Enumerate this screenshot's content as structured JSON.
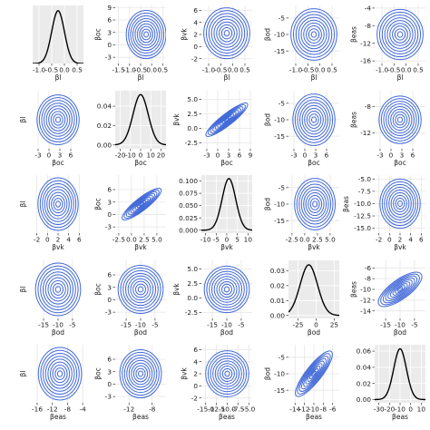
{
  "figure": {
    "type": "pairs-plot",
    "density_line_color": "#000000",
    "contour_color": "#4169d8",
    "panel_background_diagonal": "#ebebeb",
    "gridline_color": "#e6e6e6"
  },
  "chart_data": [
    {
      "type": "line",
      "row": 0,
      "col": 0,
      "xlabel": "βl",
      "ylabel": "",
      "xticks": [
        "-1.0",
        "-0.5",
        "0.0",
        "0.5"
      ],
      "xlim": [
        -1.25,
        0.75
      ],
      "yticks": [],
      "ylim": [
        0,
        1.1
      ],
      "density": {
        "mean": -0.25,
        "sd": 0.25,
        "peak": 1.0
      },
      "grid": true
    },
    {
      "type": "contour",
      "row": 0,
      "col": 1,
      "xlabel": "βl",
      "ylabel": "βoc",
      "xticks": [
        "-1.5",
        "-1.0",
        "-0.5",
        "0.0",
        "0.5"
      ],
      "xlim": [
        -1.65,
        0.65
      ],
      "yticks": [
        "-3",
        "0",
        "3",
        "6",
        "9"
      ],
      "ylim": [
        -4.5,
        9.5
      ],
      "center": [
        -0.25,
        2.5
      ],
      "rx": 0.9,
      "ry": 5.8,
      "rings": 9
    },
    {
      "type": "contour",
      "row": 0,
      "col": 2,
      "xlabel": "βl",
      "ylabel": "βvk",
      "xticks": [
        "-1.0",
        "-0.5",
        "0.0",
        "0.5"
      ],
      "xlim": [
        -1.3,
        0.8
      ],
      "yticks": [
        "-2",
        "0",
        "2",
        "4",
        "6"
      ],
      "ylim": [
        -2.8,
        6.8
      ],
      "center": [
        -0.25,
        2.2
      ],
      "rx": 0.95,
      "ry": 4.2,
      "rings": 9
    },
    {
      "type": "contour",
      "row": 0,
      "col": 3,
      "xlabel": "βl",
      "ylabel": "βod",
      "xticks": [
        "-1.0",
        "-0.5",
        "0.0",
        "0.5"
      ],
      "xlim": [
        -1.3,
        0.8
      ],
      "yticks": [
        "-15",
        "-10",
        "-5"
      ],
      "ylim": [
        -18.8,
        -1.2
      ],
      "center": [
        -0.25,
        -10
      ],
      "rx": 0.95,
      "ry": 7.8,
      "rings": 9
    },
    {
      "type": "contour",
      "row": 0,
      "col": 4,
      "xlabel": "βl",
      "ylabel": "βeas",
      "xticks": [
        "-1.0",
        "-0.5",
        "0.0",
        "0.5"
      ],
      "xlim": [
        -1.3,
        0.8
      ],
      "yticks": [
        "-16",
        "-12",
        "-8",
        "-4"
      ],
      "ylim": [
        -16.6,
        -3.4
      ],
      "center": [
        -0.25,
        -10
      ],
      "rx": 0.95,
      "ry": 5.7,
      "rings": 9
    },
    {
      "type": "contour",
      "row": 1,
      "col": 0,
      "xlabel": "βoc",
      "ylabel": "βl",
      "xticks": [
        "-3",
        "0",
        "3",
        "6"
      ],
      "xlim": [
        -4.5,
        9.5
      ],
      "yticks": [],
      "ylim": [
        -1.3,
        0.8
      ],
      "center": [
        2.5,
        -0.25
      ],
      "rx": 5.8,
      "ry": 0.9,
      "rings": 9
    },
    {
      "type": "line",
      "row": 1,
      "col": 1,
      "xlabel": "βoc",
      "ylabel": "",
      "xticks": [
        "-20",
        "-10",
        "0",
        "10",
        "20"
      ],
      "xlim": [
        -25,
        25
      ],
      "yticks": [
        "0.00",
        "0.02",
        "0.04"
      ],
      "ylim": [
        -0.004,
        0.056
      ],
      "density": {
        "mean": 0,
        "sd": 7.5,
        "peak": 0.052
      },
      "grid": true
    },
    {
      "type": "contour",
      "row": 1,
      "col": 2,
      "xlabel": "βoc",
      "ylabel": "βvk",
      "xticks": [
        "-3",
        "0",
        "3",
        "6",
        "9"
      ],
      "xlim": [
        -4.5,
        9.5
      ],
      "yticks": [
        "-2.5",
        "0.0",
        "2.5",
        "5.0"
      ],
      "ylim": [
        -3.5,
        6.5
      ],
      "center": [
        2.5,
        1.5
      ],
      "rx": 7.2,
      "ry": 1.0,
      "angle": -38,
      "rings": 9
    },
    {
      "type": "contour",
      "row": 1,
      "col": 3,
      "xlabel": "βoc",
      "ylabel": "βod",
      "xticks": [
        "-3",
        "0",
        "3",
        "6"
      ],
      "xlim": [
        -4.5,
        9.5
      ],
      "yticks": [
        "-15",
        "-10",
        "-5"
      ],
      "ylim": [
        -18.8,
        -1.2
      ],
      "center": [
        2.5,
        -10
      ],
      "rx": 5.8,
      "ry": 7.8,
      "rings": 9
    },
    {
      "type": "contour",
      "row": 1,
      "col": 4,
      "xlabel": "βoc",
      "ylabel": "βeas",
      "xticks": [
        "-3",
        "0",
        "3",
        "6"
      ],
      "xlim": [
        -4.5,
        9.5
      ],
      "yticks": [
        "-12",
        "-8"
      ],
      "ylim": [
        -14.4,
        -5.6
      ],
      "center": [
        2.5,
        -10
      ],
      "rx": 5.8,
      "ry": 3.6,
      "rings": 9
    },
    {
      "type": "contour",
      "row": 2,
      "col": 0,
      "xlabel": "βvk",
      "ylabel": "βl",
      "xticks": [
        "-2",
        "0",
        "2",
        "4",
        "6"
      ],
      "xlim": [
        -2.8,
        6.8
      ],
      "yticks": [],
      "ylim": [
        -1.3,
        0.8
      ],
      "center": [
        2.0,
        -0.25
      ],
      "rx": 3.8,
      "ry": 0.95,
      "rings": 9
    },
    {
      "type": "contour",
      "row": 2,
      "col": 1,
      "xlabel": "βvk",
      "ylabel": "βoc",
      "xticks": [
        "-2.5",
        "0.0",
        "2.5",
        "5.0"
      ],
      "xlim": [
        -3.2,
        6.8
      ],
      "yticks": [
        "-3",
        "0",
        "3",
        "6"
      ],
      "ylim": [
        -4.5,
        9.5
      ],
      "center": [
        2.0,
        2.5
      ],
      "rx": 4.8,
      "ry": 1.5,
      "angle": -38,
      "rings": 9
    },
    {
      "type": "line",
      "row": 2,
      "col": 2,
      "xlabel": "βvk",
      "ylabel": "",
      "xticks": [
        "-10",
        "-5",
        "0",
        "5",
        "10"
      ],
      "xlim": [
        -12,
        12
      ],
      "yticks": [
        "0.000",
        "0.025",
        "0.050",
        "0.075",
        "0.100"
      ],
      "ylim": [
        -0.006,
        0.112
      ],
      "density": {
        "mean": 1.0,
        "sd": 3.2,
        "peak": 0.105
      },
      "grid": true
    },
    {
      "type": "contour",
      "row": 2,
      "col": 3,
      "xlabel": "βvk",
      "ylabel": "βod",
      "xticks": [
        "-2.5",
        "0.0",
        "2.5",
        "5.0"
      ],
      "xlim": [
        -3.2,
        6.8
      ],
      "yticks": [
        "-15",
        "-10",
        "-5"
      ],
      "ylim": [
        -18.8,
        -1.2
      ],
      "center": [
        2.0,
        -10
      ],
      "rx": 4.0,
      "ry": 7.8,
      "rings": 9
    },
    {
      "type": "contour",
      "row": 2,
      "col": 4,
      "xlabel": "βvk",
      "ylabel": "βeas",
      "xticks": [
        "-2",
        "0",
        "2",
        "4",
        "6"
      ],
      "xlim": [
        -2.8,
        6.8
      ],
      "yticks": [
        "-15.0",
        "-12.5",
        "-10.0",
        "-7.5",
        "-5.0"
      ],
      "ylim": [
        -16.0,
        -4.2
      ],
      "center": [
        2.0,
        -10
      ],
      "rx": 3.8,
      "ry": 5.0,
      "rings": 9
    },
    {
      "type": "contour",
      "row": 3,
      "col": 0,
      "xlabel": "βod",
      "ylabel": "βl",
      "xticks": [
        "-15",
        "-10",
        "-5"
      ],
      "xlim": [
        -18.8,
        -1.2
      ],
      "yticks": [],
      "ylim": [
        -1.3,
        0.8
      ],
      "center": [
        -10,
        -0.25
      ],
      "rx": 7.8,
      "ry": 0.95,
      "rings": 9
    },
    {
      "type": "contour",
      "row": 3,
      "col": 1,
      "xlabel": "βod",
      "ylabel": "βoc",
      "xticks": [
        "-15",
        "-10",
        "-5"
      ],
      "xlim": [
        -18.8,
        -1.2
      ],
      "yticks": [
        "-3",
        "0",
        "3",
        "6"
      ],
      "ylim": [
        -4.5,
        9.5
      ],
      "center": [
        -10,
        2.5
      ],
      "rx": 7.8,
      "ry": 5.8,
      "rings": 9
    },
    {
      "type": "contour",
      "row": 3,
      "col": 2,
      "xlabel": "βod",
      "ylabel": "βvk",
      "xticks": [
        "-15",
        "-10",
        "-5"
      ],
      "xlim": [
        -18.8,
        -1.2
      ],
      "yticks": [
        "-2.5",
        "0.0",
        "2.5",
        "5.0"
      ],
      "ylim": [
        -3.5,
        6.5
      ],
      "center": [
        -10,
        1.5
      ],
      "rx": 7.8,
      "ry": 4.0,
      "rings": 9
    },
    {
      "type": "line",
      "row": 3,
      "col": 3,
      "xlabel": "βod",
      "ylabel": "",
      "xticks": [
        "-25",
        "0",
        "25"
      ],
      "xlim": [
        -38,
        32
      ],
      "yticks": [
        "0.00",
        "0.01",
        "0.02",
        "0.03"
      ],
      "ylim": [
        -0.002,
        0.037
      ],
      "density": {
        "mean": -10,
        "sd": 12,
        "peak": 0.034
      },
      "grid": true
    },
    {
      "type": "contour",
      "row": 3,
      "col": 4,
      "xlabel": "βod",
      "ylabel": "βeas",
      "xticks": [
        "-15",
        "-10",
        "-5"
      ],
      "xlim": [
        -18.8,
        -1.2
      ],
      "yticks": [
        "-14",
        "-12",
        "-10",
        "-8",
        "-6"
      ],
      "ylim": [
        -15.4,
        -4.6
      ],
      "center": [
        -10,
        -10
      ],
      "rx": 9.0,
      "ry": 1.8,
      "angle": -36,
      "rings": 9
    },
    {
      "type": "contour",
      "row": 4,
      "col": 0,
      "xlabel": "βeas",
      "ylabel": "βl",
      "xticks": [
        "-16",
        "-12",
        "-8",
        "-4"
      ],
      "xlim": [
        -17.2,
        -3.8
      ],
      "yticks": [],
      "ylim": [
        -1.3,
        0.8
      ],
      "center": [
        -10,
        -0.25
      ],
      "rx": 5.7,
      "ry": 0.95,
      "rings": 9
    },
    {
      "type": "contour",
      "row": 4,
      "col": 1,
      "xlabel": "βeas",
      "ylabel": "βoc",
      "xticks": [
        "-12",
        "-8"
      ],
      "xlim": [
        -14.4,
        -5.6
      ],
      "yticks": [
        "-3",
        "0",
        "3",
        "6"
      ],
      "ylim": [
        -4.5,
        9.5
      ],
      "center": [
        -10,
        2.5
      ],
      "rx": 3.6,
      "ry": 5.8,
      "rings": 9
    },
    {
      "type": "contour",
      "row": 4,
      "col": 2,
      "xlabel": "βeas",
      "ylabel": "βvk",
      "xticks": [
        "-15.0",
        "-12.5",
        "-10.0",
        "-7.5",
        "-5.0"
      ],
      "xlim": [
        -16.0,
        -4.2
      ],
      "yticks": [
        "-2",
        "0",
        "2",
        "4",
        "6"
      ],
      "ylim": [
        -2.8,
        6.8
      ],
      "center": [
        -10,
        2.0
      ],
      "rx": 5.0,
      "ry": 3.8,
      "rings": 9
    },
    {
      "type": "contour",
      "row": 4,
      "col": 3,
      "xlabel": "βeas",
      "ylabel": "βod",
      "xticks": [
        "-14",
        "-12",
        "-10",
        "-8",
        "-6"
      ],
      "xlim": [
        -15.4,
        -4.6
      ],
      "yticks": [
        "-15",
        "-10",
        "-5"
      ],
      "ylim": [
        -18.8,
        -1.2
      ],
      "center": [
        -10,
        -10
      ],
      "rx": 6.0,
      "ry": 2.4,
      "angle": -52,
      "rings": 9
    },
    {
      "type": "line",
      "row": 4,
      "col": 4,
      "xlabel": "βeas",
      "ylabel": "",
      "xticks": [
        "-30",
        "-20",
        "-10",
        "0",
        "10"
      ],
      "xlim": [
        -34,
        14
      ],
      "yticks": [
        "0.00",
        "0.02",
        "0.04",
        "0.06"
      ],
      "ylim": [
        -0.004,
        0.068
      ],
      "density": {
        "mean": -10,
        "sd": 6,
        "peak": 0.063
      },
      "grid": true
    }
  ]
}
